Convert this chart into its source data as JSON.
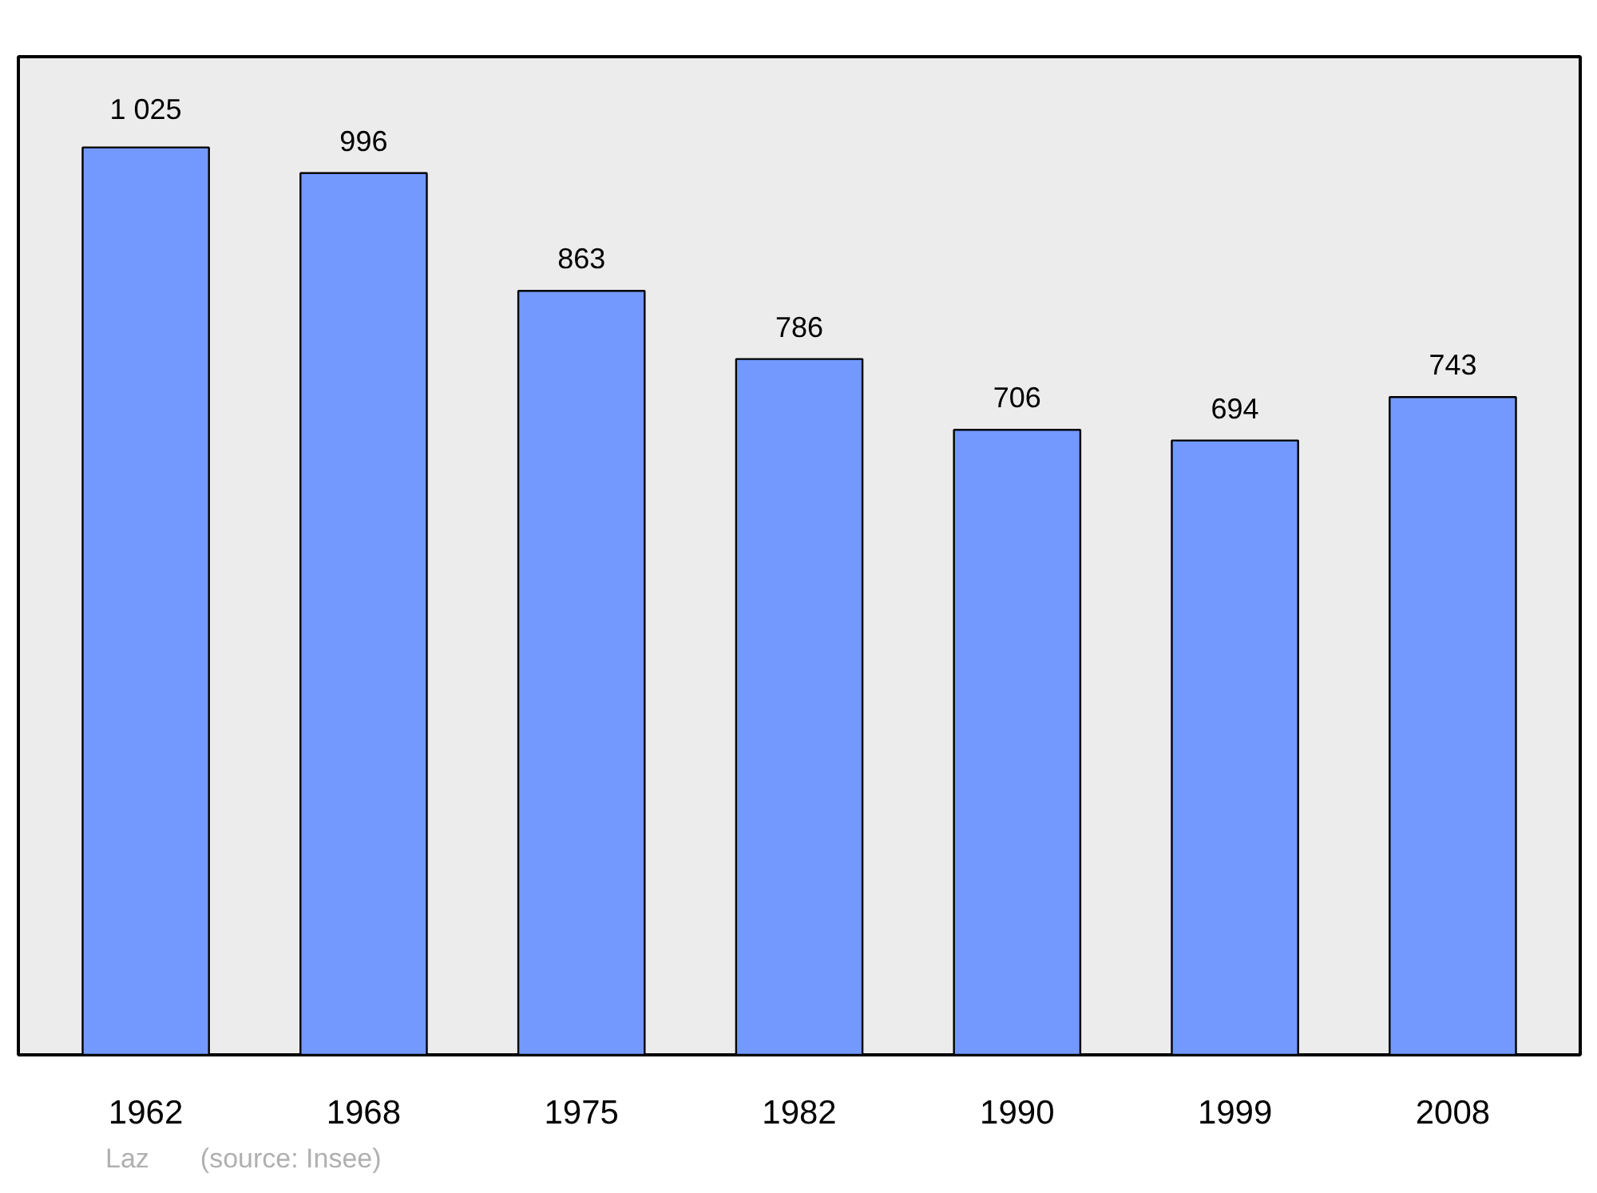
{
  "chart_data": {
    "type": "bar",
    "categories": [
      "1962",
      "1968",
      "1975",
      "1982",
      "1990",
      "1999",
      "2008"
    ],
    "values": [
      1025,
      996,
      863,
      786,
      706,
      694,
      743
    ],
    "value_labels": [
      "1 025",
      "996",
      "863",
      "786",
      "706",
      "694",
      "743"
    ],
    "color": "#7399ff",
    "grid": false,
    "annotations": [
      "Laz",
      "(source: Insee)"
    ]
  }
}
